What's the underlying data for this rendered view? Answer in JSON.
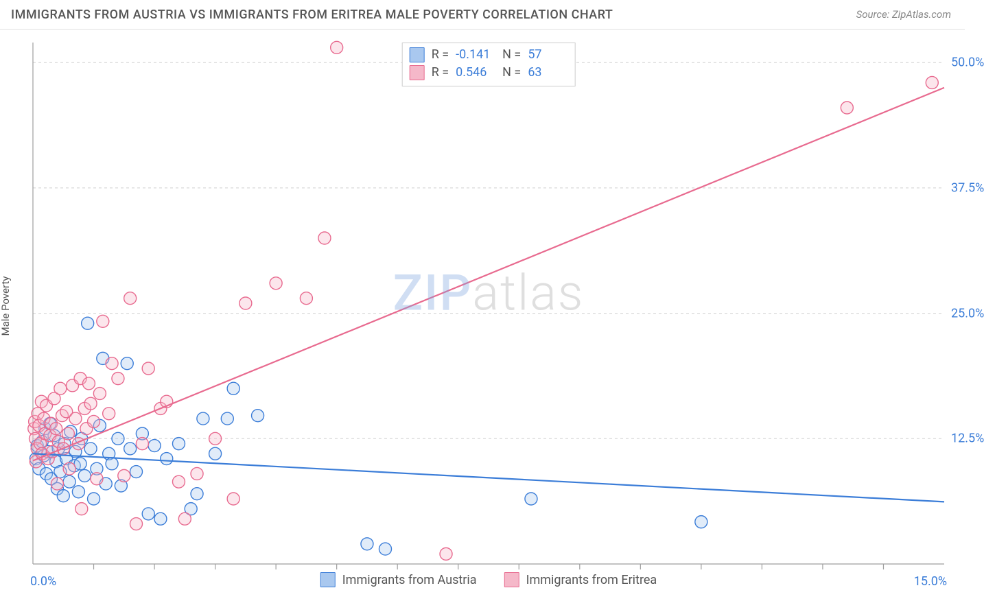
{
  "header": {
    "title": "IMMIGRANTS FROM AUSTRIA VS IMMIGRANTS FROM ERITREA MALE POVERTY CORRELATION CHART",
    "source": "Source: ZipAtlas.com"
  },
  "ylabel": "Male Poverty",
  "watermark": {
    "part1": "ZIP",
    "part2": "atlas"
  },
  "chart": {
    "type": "scatter",
    "xlim": [
      0,
      15
    ],
    "ylim": [
      0,
      52
    ],
    "x_axis_labels": [
      {
        "value": 0,
        "label": "0.0%",
        "align": "left"
      },
      {
        "value": 15,
        "label": "15.0%",
        "align": "right"
      }
    ],
    "x_ticks": [
      1,
      2,
      3,
      4,
      5,
      6,
      7,
      8,
      9,
      10,
      11,
      12,
      13,
      14
    ],
    "y_gridlines": [
      {
        "value": 12.5,
        "label": "12.5%"
      },
      {
        "value": 25.0,
        "label": "25.0%"
      },
      {
        "value": 37.5,
        "label": "37.5%"
      },
      {
        "value": 50.0,
        "label": "50.0%"
      }
    ],
    "background_color": "#ffffff",
    "grid_color": "#d0d0d0",
    "axis_color": "#9e9e9e",
    "label_color": "#3b7dd8",
    "marker_radius": 9,
    "marker_fill_opacity": 0.35,
    "marker_stroke_width": 1.4,
    "line_width": 2.2,
    "series": [
      {
        "name": "Immigrants from Austria",
        "color_stroke": "#3b7dd8",
        "color_fill": "#a9c8ef",
        "R": "-0.141",
        "N": "57",
        "regression": {
          "x1": 0,
          "y1": 11.0,
          "x2": 15,
          "y2": 6.2
        },
        "points": [
          [
            0.05,
            10.5
          ],
          [
            0.07,
            11.8
          ],
          [
            0.1,
            9.5
          ],
          [
            0.15,
            12.2
          ],
          [
            0.18,
            10.8
          ],
          [
            0.2,
            13.5
          ],
          [
            0.22,
            9.0
          ],
          [
            0.25,
            11.2
          ],
          [
            0.28,
            14.0
          ],
          [
            0.3,
            8.5
          ],
          [
            0.35,
            12.8
          ],
          [
            0.38,
            10.2
          ],
          [
            0.4,
            7.5
          ],
          [
            0.42,
            11.5
          ],
          [
            0.45,
            9.2
          ],
          [
            0.5,
            6.8
          ],
          [
            0.52,
            12.0
          ],
          [
            0.55,
            10.5
          ],
          [
            0.6,
            8.2
          ],
          [
            0.62,
            13.2
          ],
          [
            0.68,
            9.8
          ],
          [
            0.7,
            11.2
          ],
          [
            0.75,
            7.2
          ],
          [
            0.78,
            10.0
          ],
          [
            0.8,
            12.5
          ],
          [
            0.85,
            8.8
          ],
          [
            0.9,
            24.0
          ],
          [
            0.95,
            11.5
          ],
          [
            1.0,
            6.5
          ],
          [
            1.05,
            9.5
          ],
          [
            1.1,
            13.8
          ],
          [
            1.15,
            20.5
          ],
          [
            1.2,
            8.0
          ],
          [
            1.25,
            11.0
          ],
          [
            1.3,
            10.0
          ],
          [
            1.4,
            12.5
          ],
          [
            1.45,
            7.8
          ],
          [
            1.55,
            20.0
          ],
          [
            1.6,
            11.5
          ],
          [
            1.7,
            9.2
          ],
          [
            1.8,
            13.0
          ],
          [
            1.9,
            5.0
          ],
          [
            2.0,
            11.8
          ],
          [
            2.1,
            4.5
          ],
          [
            2.2,
            10.5
          ],
          [
            2.4,
            12.0
          ],
          [
            2.6,
            5.5
          ],
          [
            2.7,
            7.0
          ],
          [
            2.8,
            14.5
          ],
          [
            3.0,
            11.0
          ],
          [
            3.2,
            14.5
          ],
          [
            3.3,
            17.5
          ],
          [
            3.7,
            14.8
          ],
          [
            5.5,
            2.0
          ],
          [
            5.8,
            1.5
          ],
          [
            8.2,
            6.5
          ],
          [
            11.0,
            4.2
          ]
        ]
      },
      {
        "name": "Immigrants from Eritrea",
        "color_stroke": "#e86a8f",
        "color_fill": "#f5b8c9",
        "R": "0.546",
        "N": "63",
        "regression": {
          "x1": 0,
          "y1": 10.3,
          "x2": 15,
          "y2": 47.5
        },
        "points": [
          [
            0.02,
            13.5
          ],
          [
            0.03,
            14.2
          ],
          [
            0.04,
            12.5
          ],
          [
            0.05,
            10.2
          ],
          [
            0.07,
            11.5
          ],
          [
            0.08,
            15.0
          ],
          [
            0.1,
            13.8
          ],
          [
            0.12,
            12.0
          ],
          [
            0.14,
            16.2
          ],
          [
            0.15,
            11.0
          ],
          [
            0.18,
            14.5
          ],
          [
            0.2,
            13.0
          ],
          [
            0.22,
            15.8
          ],
          [
            0.25,
            10.5
          ],
          [
            0.28,
            12.8
          ],
          [
            0.3,
            14.0
          ],
          [
            0.32,
            11.2
          ],
          [
            0.35,
            16.5
          ],
          [
            0.38,
            13.5
          ],
          [
            0.4,
            8.0
          ],
          [
            0.42,
            12.2
          ],
          [
            0.45,
            17.5
          ],
          [
            0.48,
            14.8
          ],
          [
            0.5,
            11.5
          ],
          [
            0.55,
            15.2
          ],
          [
            0.58,
            13.0
          ],
          [
            0.6,
            9.5
          ],
          [
            0.65,
            17.8
          ],
          [
            0.7,
            14.5
          ],
          [
            0.75,
            12.0
          ],
          [
            0.78,
            18.5
          ],
          [
            0.8,
            5.5
          ],
          [
            0.85,
            15.5
          ],
          [
            0.88,
            13.5
          ],
          [
            0.92,
            18.0
          ],
          [
            0.95,
            16.0
          ],
          [
            1.0,
            14.2
          ],
          [
            1.05,
            8.5
          ],
          [
            1.1,
            17.0
          ],
          [
            1.15,
            24.2
          ],
          [
            1.25,
            15.0
          ],
          [
            1.3,
            20.0
          ],
          [
            1.4,
            18.5
          ],
          [
            1.5,
            8.8
          ],
          [
            1.6,
            26.5
          ],
          [
            1.7,
            4.0
          ],
          [
            1.8,
            12.0
          ],
          [
            1.9,
            19.5
          ],
          [
            2.1,
            15.5
          ],
          [
            2.2,
            16.2
          ],
          [
            2.4,
            8.2
          ],
          [
            2.5,
            4.5
          ],
          [
            2.7,
            9.0
          ],
          [
            3.0,
            12.5
          ],
          [
            3.3,
            6.5
          ],
          [
            3.5,
            26.0
          ],
          [
            4.0,
            28.0
          ],
          [
            4.5,
            26.5
          ],
          [
            4.8,
            32.5
          ],
          [
            5.0,
            51.5
          ],
          [
            6.8,
            1.0
          ],
          [
            13.4,
            45.5
          ],
          [
            14.8,
            48.0
          ]
        ]
      }
    ]
  },
  "bottom_legend": [
    {
      "label": "Immigrants from Austria",
      "stroke": "#3b7dd8",
      "fill": "#a9c8ef"
    },
    {
      "label": "Immigrants from Eritrea",
      "stroke": "#e86a8f",
      "fill": "#f5b8c9"
    }
  ]
}
